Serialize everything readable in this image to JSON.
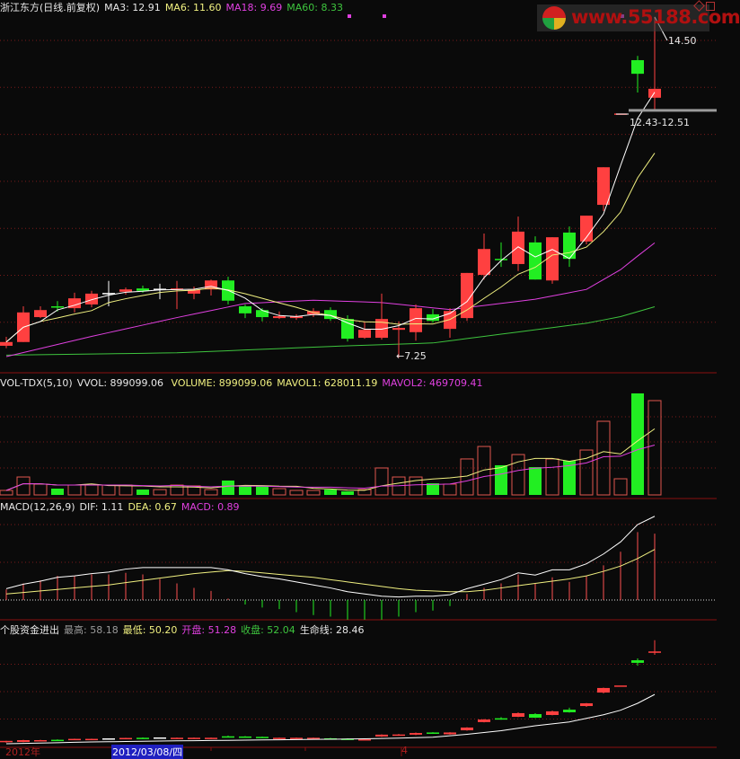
{
  "header": {
    "title": "浙江东方(日线.前复权)",
    "ma3": "MA3: 12.91",
    "ma6": "MA6: 11.60",
    "ma18": "MA18: 9.69",
    "ma60": "MA60: 8.33"
  },
  "volume_header": {
    "name": "VOL-TDX(5,10)",
    "vvol": "VVOL: 899099.06",
    "volume": "VOLUME: 899099.06",
    "mavol1": "MAVOL1: 628011.19",
    "mavol2": "MAVOL2: 469709.41"
  },
  "macd_header": {
    "name": "MACD(12,26,9)",
    "dif": "DIF: 1.11",
    "dea": "DEA: 0.67",
    "macd": "MACD: 0.89"
  },
  "fund_header": {
    "name": "个股资金进出",
    "high": "最高: 58.18",
    "low": "最低: 50.20",
    "open": "开盘: 51.28",
    "close": "收盘: 52.04",
    "lifeline": "生命线: 28.46"
  },
  "annotations": {
    "max_price": "14.50",
    "min_price": "←7.25",
    "gap": "12.43-12.51"
  },
  "date_axis": {
    "year": "2012年",
    "cursor_date": "2012/03/08/四",
    "month": "4"
  },
  "watermark": {
    "text": "www.55188.com"
  },
  "colors": {
    "background": "#0a0a0a",
    "up": "#ff4040",
    "down": "#22ee22",
    "ma3": "#ffffff",
    "ma6": "#f0f080",
    "ma18": "#e040e0",
    "ma60": "#3ec43e",
    "grid": "#7a1a1a",
    "cursor_date_bg": "#2020c0"
  },
  "chart_data": [
    {
      "type": "candlestick",
      "title": "浙江东方(日线.前复权)",
      "grid": true,
      "ylim": [
        7,
        14.6
      ],
      "ohlc": [
        [
          7.5,
          7.69,
          7.45,
          7.58
        ],
        [
          7.58,
          8.34,
          7.58,
          8.21
        ],
        [
          8.11,
          8.34,
          8.09,
          8.26
        ],
        [
          8.34,
          8.45,
          8.23,
          8.32
        ],
        [
          8.3,
          8.63,
          8.21,
          8.51
        ],
        [
          8.38,
          8.67,
          8.32,
          8.61
        ],
        [
          8.61,
          8.88,
          8.34,
          8.61
        ],
        [
          8.65,
          8.74,
          8.59,
          8.7
        ],
        [
          8.72,
          8.78,
          8.63,
          8.67
        ],
        [
          8.7,
          8.82,
          8.49,
          8.7
        ],
        [
          8.7,
          8.88,
          8.28,
          8.72
        ],
        [
          8.61,
          8.76,
          8.49,
          8.69
        ],
        [
          8.7,
          8.91,
          8.57,
          8.89
        ],
        [
          8.89,
          8.97,
          8.38,
          8.46
        ],
        [
          8.34,
          8.38,
          8.09,
          8.19
        ],
        [
          8.26,
          8.3,
          8.02,
          8.11
        ],
        [
          8.09,
          8.23,
          8.07,
          8.13
        ],
        [
          8.09,
          8.17,
          8.05,
          8.13
        ],
        [
          8.17,
          8.3,
          8.11,
          8.24
        ],
        [
          8.26,
          8.32,
          8.03,
          8.07
        ],
        [
          8.07,
          8.15,
          7.59,
          7.65
        ],
        [
          7.67,
          8.02,
          7.65,
          7.84
        ],
        [
          7.67,
          8.61,
          7.63,
          8.07
        ],
        [
          7.84,
          8.02,
          7.25,
          7.88
        ],
        [
          7.79,
          8.38,
          7.61,
          8.3
        ],
        [
          8.17,
          8.28,
          7.99,
          8.03
        ],
        [
          7.86,
          8.3,
          7.67,
          8.24
        ],
        [
          8.09,
          9.05,
          8.03,
          9.05
        ],
        [
          9.01,
          9.89,
          8.91,
          9.56
        ],
        [
          9.35,
          9.7,
          9.18,
          9.33
        ],
        [
          9.24,
          10.25,
          9.09,
          9.93
        ],
        [
          9.7,
          9.83,
          8.91,
          8.91
        ],
        [
          8.89,
          9.81,
          8.82,
          9.81
        ],
        [
          9.91,
          10.04,
          9.18,
          9.35
        ],
        [
          9.72,
          10.27,
          9.66,
          10.27
        ],
        [
          10.5,
          11.3,
          10.37,
          11.3
        ],
        [
          12.43,
          12.43,
          12.43,
          12.43
        ],
        [
          13.58,
          13.67,
          12.89,
          13.29
        ],
        [
          12.78,
          14.5,
          12.49,
          12.97
        ]
      ],
      "ma18_points": [
        [
          0,
          7.27
        ],
        [
          5,
          7.7
        ],
        [
          10,
          8.1
        ],
        [
          14,
          8.4
        ],
        [
          18,
          8.47
        ],
        [
          22,
          8.42
        ],
        [
          26,
          8.27
        ],
        [
          31,
          8.49
        ],
        [
          34,
          8.7
        ],
        [
          36,
          9.12
        ],
        [
          37,
          9.41
        ],
        [
          38,
          9.69
        ]
      ],
      "ma60_points": [
        [
          0,
          7.3
        ],
        [
          10,
          7.35
        ],
        [
          20,
          7.5
        ],
        [
          25,
          7.56
        ],
        [
          31,
          7.84
        ],
        [
          34,
          7.98
        ],
        [
          36,
          8.12
        ],
        [
          38,
          8.33
        ]
      ],
      "ma_periods": [
        3,
        6
      ]
    },
    {
      "type": "bar",
      "title": "VOL-TDX(5,10)",
      "grid": true,
      "values": [
        43000,
        171000,
        103000,
        60000,
        94000,
        94000,
        94000,
        94000,
        51000,
        51000,
        94000,
        86000,
        51000,
        137000,
        86000,
        86000,
        60000,
        43000,
        43000,
        51000,
        34000,
        51000,
        257000,
        171000,
        171000,
        111000,
        103000,
        343000,
        462000,
        283000,
        385000,
        265000,
        343000,
        325000,
        428000,
        702000,
        154000,
        968000,
        899099.06
      ],
      "ma_periods": [
        5,
        10
      ]
    },
    {
      "type": "line",
      "title": "MACD(12,26,9)",
      "grid": true,
      "dif": [
        0.15,
        0.21,
        0.25,
        0.3,
        0.32,
        0.35,
        0.37,
        0.41,
        0.43,
        0.43,
        0.43,
        0.43,
        0.43,
        0.4,
        0.35,
        0.31,
        0.28,
        0.24,
        0.2,
        0.16,
        0.11,
        0.08,
        0.05,
        0.04,
        0.05,
        0.05,
        0.07,
        0.15,
        0.21,
        0.27,
        0.36,
        0.33,
        0.4,
        0.4,
        0.48,
        0.61,
        0.77,
        1.0,
        1.11
      ],
      "dea": [
        0.08,
        0.1,
        0.12,
        0.14,
        0.16,
        0.18,
        0.2,
        0.23,
        0.26,
        0.29,
        0.32,
        0.35,
        0.37,
        0.39,
        0.38,
        0.36,
        0.34,
        0.32,
        0.3,
        0.27,
        0.24,
        0.21,
        0.18,
        0.15,
        0.13,
        0.12,
        0.11,
        0.11,
        0.13,
        0.16,
        0.19,
        0.22,
        0.25,
        0.28,
        0.32,
        0.38,
        0.45,
        0.55,
        0.67
      ]
    },
    {
      "type": "candlestick",
      "title": "个股资金进出",
      "grid": true,
      "ohlc": [
        [
          2.5,
          3,
          2,
          3
        ],
        [
          2.4,
          3.6,
          2.2,
          3.4
        ],
        [
          3.2,
          3.6,
          3.0,
          3.4
        ],
        [
          3.6,
          3.8,
          3.2,
          3.4
        ],
        [
          3.8,
          4.2,
          3.6,
          4.1
        ],
        [
          3.8,
          4.2,
          3.6,
          4.1
        ],
        [
          4.0,
          4.4,
          3.8,
          4.0
        ],
        [
          4.3,
          4.7,
          4.1,
          4.6
        ],
        [
          4.7,
          4.9,
          4.4,
          4.5
        ],
        [
          4.5,
          4.8,
          4.3,
          4.5
        ],
        [
          4.4,
          4.8,
          4.2,
          4.7
        ],
        [
          4.4,
          4.8,
          4.2,
          4.7
        ],
        [
          4.4,
          4.8,
          4.2,
          4.7
        ],
        [
          5.5,
          5.9,
          5.0,
          5.1
        ],
        [
          5.4,
          5.6,
          5.0,
          5.1
        ],
        [
          5.2,
          5.4,
          4.8,
          4.9
        ],
        [
          4.4,
          4.8,
          4.2,
          4.7
        ],
        [
          4.4,
          4.8,
          4.2,
          4.7
        ],
        [
          4.4,
          4.8,
          4.2,
          4.7
        ],
        [
          4.4,
          4.6,
          4.0,
          4.1
        ],
        [
          4.2,
          4.4,
          3.8,
          3.9
        ],
        [
          3.6,
          4.0,
          3.4,
          3.9
        ],
        [
          5.4,
          6.6,
          5.2,
          6.4
        ],
        [
          6.0,
          6.8,
          5.8,
          6.5
        ],
        [
          6.4,
          7.6,
          6.2,
          7.3
        ],
        [
          7.6,
          7.8,
          7.0,
          7.2
        ],
        [
          6.6,
          7.8,
          6.4,
          7.6
        ],
        [
          8.8,
          10.5,
          8.6,
          10.3
        ],
        [
          13.3,
          15.0,
          13.1,
          14.7
        ],
        [
          15.4,
          16.0,
          14.6,
          15.2
        ],
        [
          16.2,
          18.6,
          16.0,
          18.2
        ],
        [
          17.7,
          18.2,
          15.5,
          15.7
        ],
        [
          17.2,
          19.6,
          17.0,
          19.2
        ],
        [
          20.1,
          21.2,
          18.5,
          18.7
        ],
        [
          22.1,
          23.8,
          21.6,
          23.6
        ],
        [
          29.5,
          32.2,
          29.0,
          32.0
        ],
        [
          33,
          33,
          33,
          33
        ],
        [
          47.2,
          48.2,
          44.2,
          45.8
        ],
        [
          51.28,
          58.18,
          50.2,
          52.04
        ]
      ],
      "lifeline_points": [
        [
          0,
          1.4
        ],
        [
          5,
          2.4
        ],
        [
          10,
          3.0
        ],
        [
          15,
          3.5
        ],
        [
          20,
          4.0
        ],
        [
          23,
          4.5
        ],
        [
          25,
          5.0
        ],
        [
          27,
          6.6
        ],
        [
          29,
          8.6
        ],
        [
          31,
          11.3
        ],
        [
          33,
          13.4
        ],
        [
          35,
          17.3
        ],
        [
          36,
          19.8
        ],
        [
          37,
          23.6
        ],
        [
          38,
          28.46
        ]
      ]
    }
  ]
}
